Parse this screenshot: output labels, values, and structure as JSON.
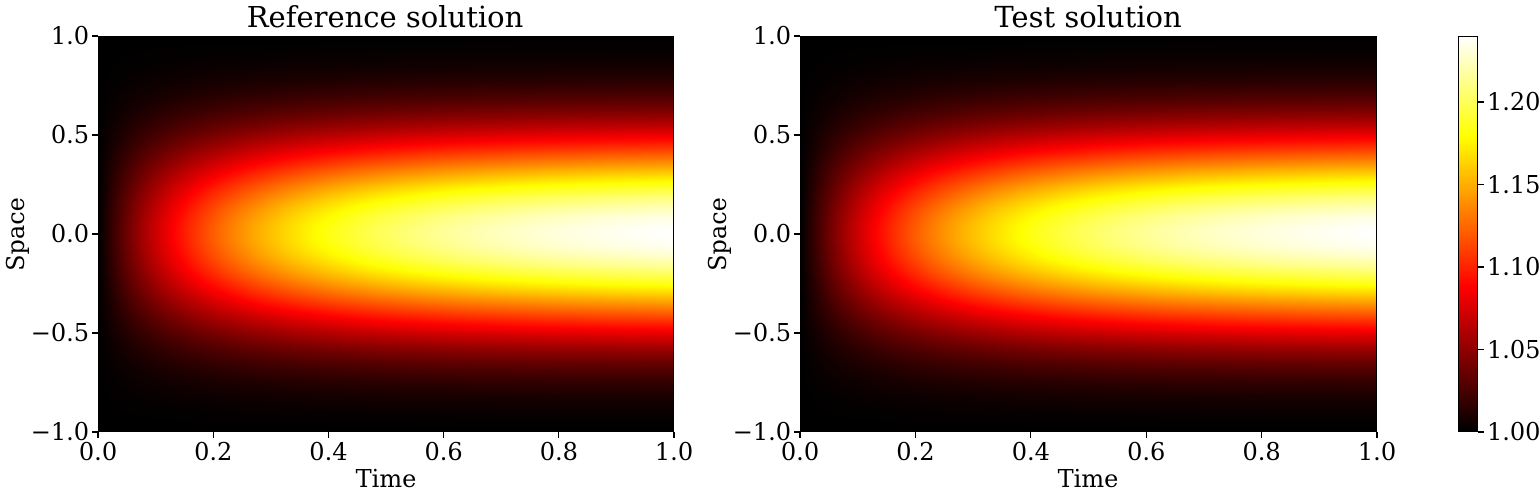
{
  "chart_data": [
    {
      "type": "heatmap",
      "title": "Reference solution",
      "xlabel": "Time",
      "ylabel": "Space",
      "xlim": [
        0.0,
        1.0
      ],
      "ylim": [
        -1.0,
        1.0
      ],
      "xticks": [
        0.0,
        0.2,
        0.4,
        0.6,
        0.8,
        1.0
      ],
      "xtick_labels": [
        "0.0",
        "0.2",
        "0.4",
        "0.6",
        "0.8",
        "1.0"
      ],
      "yticks": [
        1.0,
        0.5,
        0.0,
        -0.5,
        -1.0
      ],
      "ytick_labels": [
        "1.0",
        "0.5",
        "0.0",
        "−0.5",
        "−1.0"
      ],
      "colormap": "hot",
      "value_range": [
        1.0,
        1.24
      ],
      "field": {
        "time": [
          0.0,
          0.2,
          0.4,
          0.6,
          0.8,
          1.0
        ],
        "space": [
          -1.0,
          -0.5,
          0.0,
          0.5,
          1.0
        ],
        "values": [
          [
            1.0,
            1.0,
            1.0,
            1.0,
            1.0
          ],
          [
            1.0,
            1.07,
            1.11,
            1.07,
            1.0
          ],
          [
            1.0,
            1.1,
            1.165,
            1.1,
            1.0
          ],
          [
            1.0,
            1.11,
            1.195,
            1.11,
            1.0
          ],
          [
            1.0,
            1.115,
            1.215,
            1.115,
            1.0
          ],
          [
            1.0,
            1.12,
            1.235,
            1.12,
            1.0
          ]
        ]
      }
    },
    {
      "type": "heatmap",
      "title": "Test solution",
      "xlabel": "Time",
      "ylabel": "Space",
      "xlim": [
        0.0,
        1.0
      ],
      "ylim": [
        -1.0,
        1.0
      ],
      "xticks": [
        0.0,
        0.2,
        0.4,
        0.6,
        0.8,
        1.0
      ],
      "xtick_labels": [
        "0.0",
        "0.2",
        "0.4",
        "0.6",
        "0.8",
        "1.0"
      ],
      "yticks": [
        1.0,
        0.5,
        0.0,
        -0.5,
        -1.0
      ],
      "ytick_labels": [
        "1.0",
        "0.5",
        "0.0",
        "−0.5",
        "−1.0"
      ],
      "colormap": "hot",
      "value_range": [
        1.0,
        1.24
      ],
      "field": {
        "time": [
          0.0,
          0.2,
          0.4,
          0.6,
          0.8,
          1.0
        ],
        "space": [
          -1.0,
          -0.5,
          0.0,
          0.5,
          1.0
        ],
        "values": [
          [
            1.0,
            1.0,
            1.0,
            1.0,
            1.0
          ],
          [
            1.0,
            1.065,
            1.105,
            1.065,
            1.0
          ],
          [
            1.0,
            1.1,
            1.16,
            1.1,
            1.0
          ],
          [
            1.0,
            1.11,
            1.19,
            1.11,
            1.0
          ],
          [
            1.0,
            1.115,
            1.215,
            1.115,
            1.0
          ],
          [
            1.0,
            1.12,
            1.235,
            1.12,
            1.0
          ]
        ]
      }
    }
  ],
  "colorbar": {
    "colormap": "hot",
    "min": 1.0,
    "max": 1.24,
    "ticks": [
      1.0,
      1.05,
      1.1,
      1.15,
      1.2
    ],
    "tick_labels": [
      "1.00",
      "1.05",
      "1.10",
      "1.15",
      "1.20"
    ]
  }
}
